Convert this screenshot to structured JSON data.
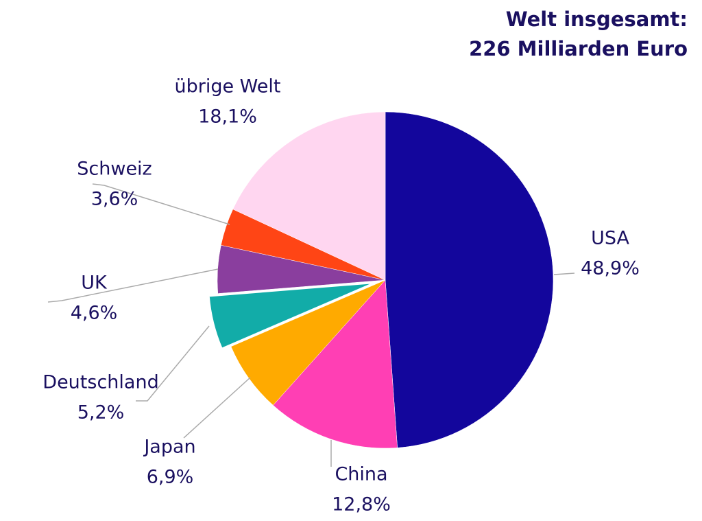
{
  "chart_data": {
    "type": "pie",
    "title": "Welt insgesamt:",
    "subtitle": "226 Milliarden Euro",
    "categories": [
      "USA",
      "China",
      "Japan",
      "Deutschland",
      "UK",
      "Schweiz",
      "übrige Welt"
    ],
    "values": [
      48.9,
      12.8,
      6.9,
      5.2,
      4.6,
      3.6,
      18.1
    ],
    "value_labels": [
      "48,9%",
      "12,8%",
      "6,9%",
      "5,2%",
      "4,6%",
      "3,6%",
      "18,1%"
    ],
    "colors": [
      "#13069c",
      "#ff3fb4",
      "#ffaa00",
      "#12aca8",
      "#8a3e9e",
      "#ff4515",
      "#ffd6f0"
    ],
    "highlight": "Deutschland"
  }
}
